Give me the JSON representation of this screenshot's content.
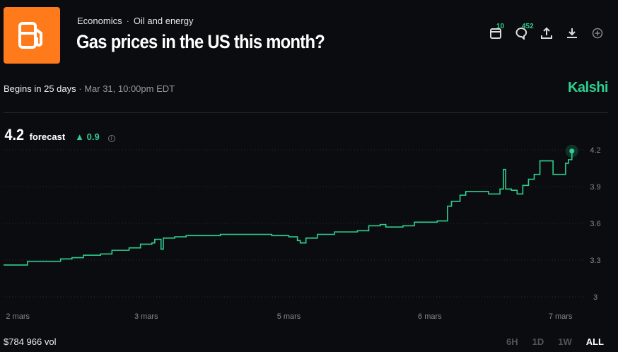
{
  "header": {
    "category": "Economics",
    "subcategory": "Oil and energy",
    "title": "Gas prices in the US this month?",
    "calendar_count": "10",
    "comment_count": "452"
  },
  "status": {
    "begins": "Begins in 25 days",
    "date": "Mar 31, 10:00pm EDT",
    "brand": "Kalshi"
  },
  "forecast": {
    "value": "4.2",
    "label": "forecast",
    "change": "0.9",
    "change_arrow": "▲"
  },
  "footer": {
    "volume": "$784 966 vol",
    "ranges": [
      "6H",
      "1D",
      "1W",
      "ALL"
    ],
    "active_range": "ALL"
  },
  "colors": {
    "accent": "#2fcf8f",
    "logo": "#ff7a1a"
  },
  "chart_data": {
    "type": "line",
    "title": "",
    "xlabel": "",
    "ylabel": "",
    "ylim": [
      2.95,
      4.25
    ],
    "yticks": [
      3,
      3.3,
      3.6,
      3.9,
      4.2
    ],
    "ytick_labels": [
      "3",
      "3.3",
      "3.6",
      "3.9",
      "4.2"
    ],
    "xlim": [
      0,
      100
    ],
    "xticks": [
      {
        "x": 2.5,
        "label": "2 mars"
      },
      {
        "x": 25,
        "label": "3 mars"
      },
      {
        "x": 50,
        "label": "5 mars"
      },
      {
        "x": 74.7,
        "label": "6 mars"
      },
      {
        "x": 97.6,
        "label": "7 mars"
      }
    ],
    "grid": true,
    "series": [
      {
        "name": "forecast",
        "points": [
          [
            0,
            3.26
          ],
          [
            4,
            3.26
          ],
          [
            4.2,
            3.29
          ],
          [
            8,
            3.29
          ],
          [
            10,
            3.31
          ],
          [
            12,
            3.32
          ],
          [
            14,
            3.34
          ],
          [
            17,
            3.35
          ],
          [
            19,
            3.38
          ],
          [
            22,
            3.4
          ],
          [
            24,
            3.43
          ],
          [
            26,
            3.44
          ],
          [
            26.5,
            3.47
          ],
          [
            27.3,
            3.47
          ],
          [
            27.6,
            3.39
          ],
          [
            28,
            3.48
          ],
          [
            30,
            3.49
          ],
          [
            32,
            3.5
          ],
          [
            36,
            3.5
          ],
          [
            38,
            3.51
          ],
          [
            43,
            3.51
          ],
          [
            47,
            3.5
          ],
          [
            50,
            3.49
          ],
          [
            51.5,
            3.46
          ],
          [
            52,
            3.44
          ],
          [
            53,
            3.48
          ],
          [
            55,
            3.51
          ],
          [
            58,
            3.53
          ],
          [
            60,
            3.53
          ],
          [
            62,
            3.54
          ],
          [
            64,
            3.58
          ],
          [
            66,
            3.59
          ],
          [
            67,
            3.57
          ],
          [
            70,
            3.58
          ],
          [
            72,
            3.61
          ],
          [
            76,
            3.62
          ],
          [
            77.3,
            3.62
          ],
          [
            77.8,
            3.74
          ],
          [
            78.5,
            3.78
          ],
          [
            80,
            3.83
          ],
          [
            81,
            3.86
          ],
          [
            84,
            3.86
          ],
          [
            85,
            3.84
          ],
          [
            87,
            3.88
          ],
          [
            87.6,
            4.04
          ],
          [
            88,
            3.88
          ],
          [
            89,
            3.87
          ],
          [
            90,
            3.84
          ],
          [
            91,
            3.91
          ],
          [
            92,
            3.96
          ],
          [
            93,
            4.0
          ],
          [
            94,
            4.11
          ],
          [
            95.8,
            4.11
          ],
          [
            96.3,
            4.0
          ],
          [
            97.8,
            4.0
          ],
          [
            98.5,
            4.09
          ],
          [
            99,
            4.12
          ],
          [
            99.6,
            4.19
          ]
        ]
      }
    ]
  }
}
